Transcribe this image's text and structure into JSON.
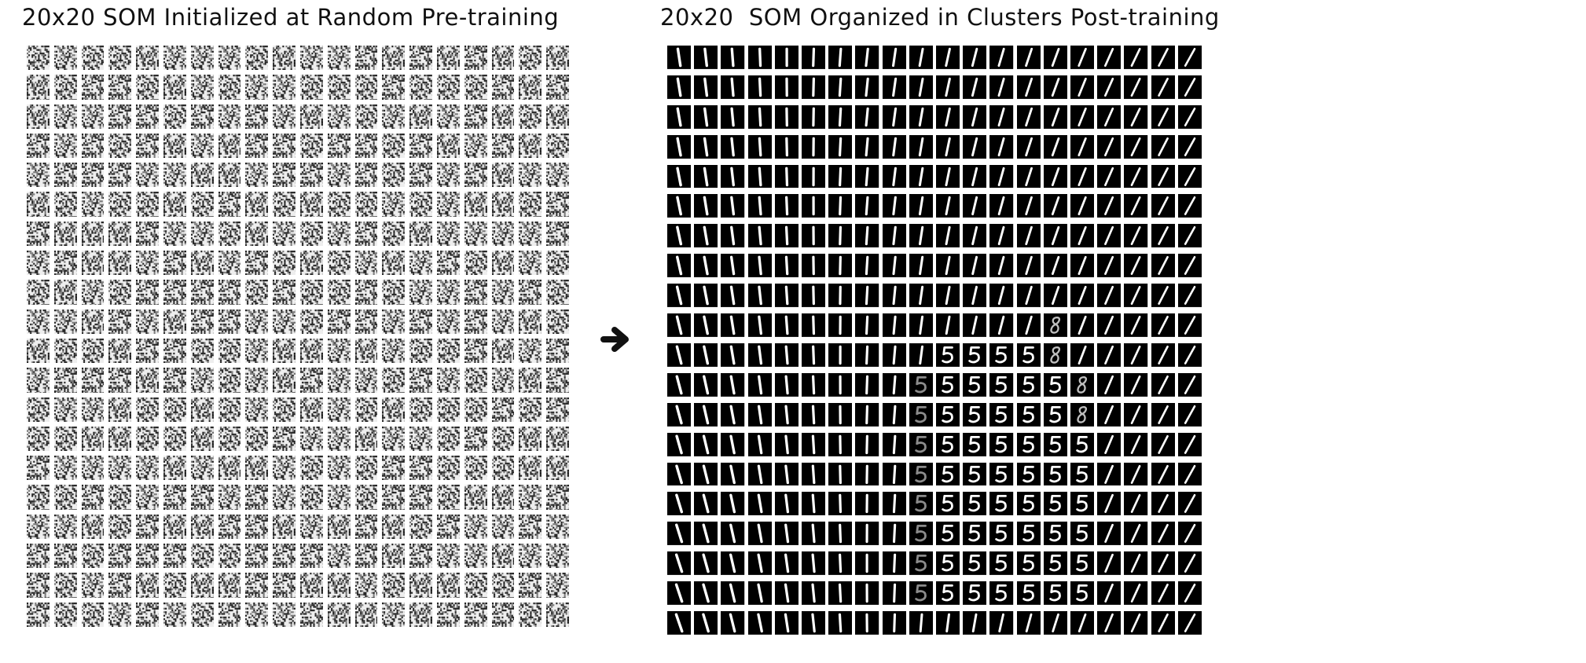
{
  "titles": {
    "left": "20x20 SOM Initialized at Random Pre-training",
    "right": "20x20  SOM Organized in Clusters Post-training"
  },
  "arrow_icon": "right-arrow-icon",
  "grid": {
    "rows": 20,
    "cols": 20
  },
  "colors": {
    "noise_dark": "#222222",
    "noise_light": "#eeeeee",
    "trained_bg": "#000000",
    "trained_stroke": "#ffffff"
  },
  "trained_map_digits": [
    "11111111111111111111",
    "11111111111111111111",
    "11111111111111111111",
    "11111111111111111111",
    "11111111111111111111",
    "11111111111111111111",
    "11111111111111111111",
    "11111111111111111111",
    "11111111111111111111",
    "11111111111111811111",
    "11111111115555811111",
    "11111111155555581111",
    "11111111155555581111",
    "11111111155555551111",
    "11111111155555551111",
    "11111111155555551111",
    "11111111155555551111",
    "11111111155555551111",
    "11111111155555551111",
    "11111111111111111111"
  ]
}
